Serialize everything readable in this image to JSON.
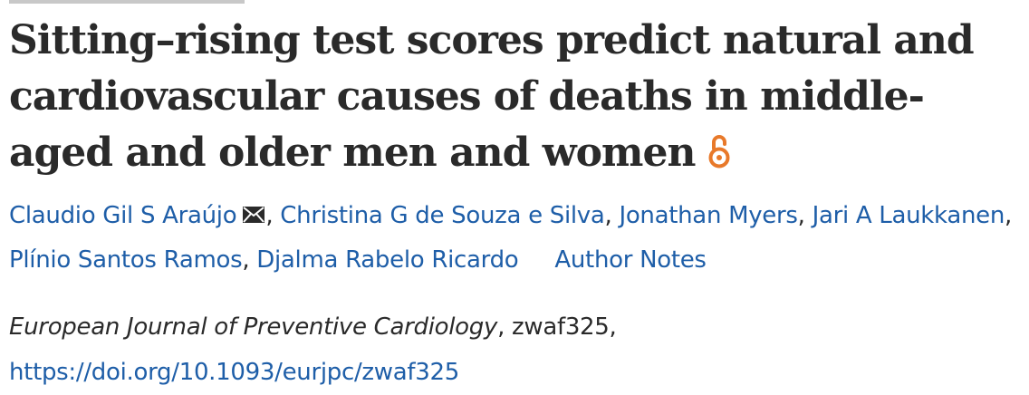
{
  "article": {
    "title": "Sitting–rising test scores predict natural and cardiovascular causes of deaths in middle-aged and older men and women",
    "open_access_icon": "open-access-lock-icon"
  },
  "authors": [
    {
      "name": "Claudio Gil S Araújo",
      "corresponding": true
    },
    {
      "name": "Christina G de Souza e Silva"
    },
    {
      "name": "Jonathan Myers"
    },
    {
      "name": "Jari A Laukkanen"
    },
    {
      "name": "Plínio Santos Ramos"
    },
    {
      "name": "Djalma Rabelo Ricardo"
    }
  ],
  "author_notes_label": "Author Notes",
  "citation": {
    "journal": "European Journal of Preventive Cardiology",
    "article_id": "zwaf325",
    "doi_url": "https://doi.org/10.1093/eurjpc/zwaf325"
  },
  "colors": {
    "link": "#1e5ea8",
    "text": "#2a2a2a",
    "open_access": "#e8792a"
  }
}
